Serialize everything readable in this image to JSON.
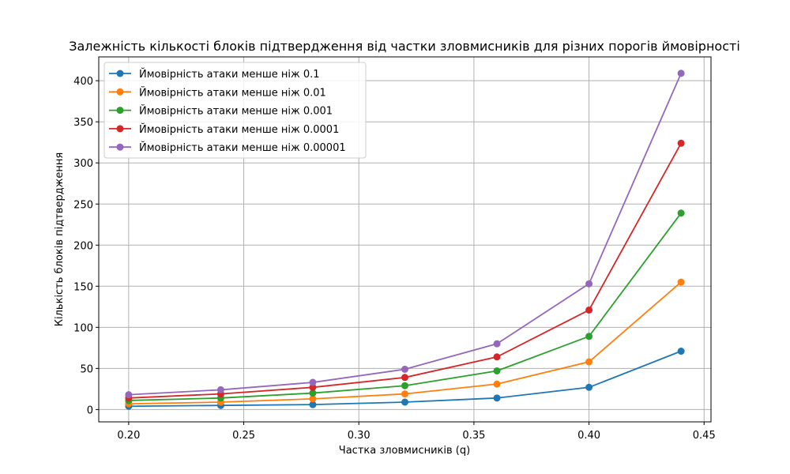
{
  "chart_data": {
    "type": "line",
    "title": "Залежність кількості блоків підтвердження від частки зловмисників для різних порогів ймовірності",
    "xlabel": "Частка зловмисників (q)",
    "ylabel": "Кількість блоків підтвердження",
    "x": [
      0.2,
      0.24,
      0.28,
      0.32,
      0.36,
      0.4,
      0.44
    ],
    "xlim": [
      0.187,
      0.453
    ],
    "ylim": [
      -15,
      429
    ],
    "xticks": [
      "0.20",
      "0.25",
      "0.30",
      "0.35",
      "0.40",
      "0.45"
    ],
    "xtick_values": [
      0.2,
      0.25,
      0.3,
      0.35,
      0.4,
      0.45
    ],
    "yticks": [
      "0",
      "50",
      "100",
      "150",
      "200",
      "250",
      "300",
      "350",
      "400"
    ],
    "ytick_values": [
      0,
      50,
      100,
      150,
      200,
      250,
      300,
      350,
      400
    ],
    "grid": true,
    "legend_position": "top-left",
    "series": [
      {
        "name": "Ймовірність атаки менше ніж 0.1",
        "color": "#1f77b4",
        "values": [
          4,
          5,
          6,
          9,
          14,
          27,
          71
        ]
      },
      {
        "name": "Ймовірність атаки менше ніж 0.01",
        "color": "#ff7f0e",
        "values": [
          7,
          9,
          13,
          19,
          31,
          58,
          155
        ]
      },
      {
        "name": "Ймовірність атаки менше ніж 0.001",
        "color": "#2ca02c",
        "values": [
          11,
          14,
          20,
          29,
          47,
          89,
          239
        ]
      },
      {
        "name": "Ймовірність атаки менше ніж 0.0001",
        "color": "#d62728",
        "values": [
          14,
          19,
          27,
          39,
          64,
          121,
          324
        ]
      },
      {
        "name": "Ймовірність атаки менше ніж 0.00001",
        "color": "#9467bd",
        "values": [
          18,
          24,
          33,
          49,
          80,
          153,
          409
        ]
      }
    ]
  }
}
